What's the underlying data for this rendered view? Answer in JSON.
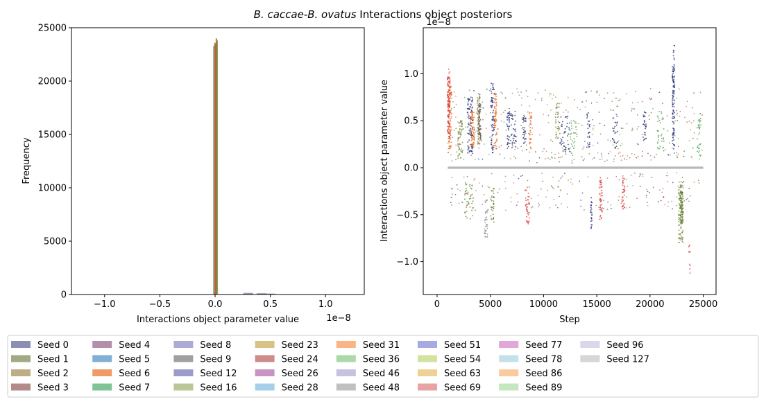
{
  "figure": {
    "title_parts": {
      "a": "B. caccae",
      "sep": "-",
      "b": "B. ovatus",
      "rest": " Interactions object posteriors"
    }
  },
  "chart_data": [
    {
      "type": "histogram",
      "xlabel": "Interactions object parameter value",
      "ylabel": "Frequency",
      "x_offset_label": "1e−8",
      "xlim": [
        -1.3,
        1.35
      ],
      "ylim": [
        0,
        25000
      ],
      "xticks": [
        -1.0,
        -0.5,
        0.0,
        0.5,
        1.0
      ],
      "xtick_labels": [
        "−1.0",
        "−0.5",
        "0.0",
        "0.5",
        "1.0"
      ],
      "yticks": [
        0,
        5000,
        10000,
        15000,
        20000,
        25000
      ],
      "ytick_labels": [
        "0",
        "5000",
        "10000",
        "15000",
        "20000",
        "25000"
      ],
      "bars": [
        {
          "seed": "Seed 7",
          "x": -0.01,
          "count": 23300
        },
        {
          "seed": "Seed 6",
          "x": -0.003,
          "count": 23600
        },
        {
          "seed": "Seed 24",
          "x": 0.005,
          "count": 23500
        },
        {
          "seed": "Seed 2",
          "x": 0.012,
          "count": 24000
        },
        {
          "seed": "Seed 16",
          "x": 0.018,
          "count": 23800
        },
        {
          "seed": "Seed 0",
          "x": 0.3,
          "count": 150
        },
        {
          "seed": "Seed 0",
          "x": 0.42,
          "count": 120
        },
        {
          "seed": "Seed 9",
          "x": 0.5,
          "count": 90
        }
      ]
    },
    {
      "type": "scatter",
      "xlabel": "Step",
      "ylabel": "Interactions object parameter value",
      "y_offset_label": "1e−8",
      "xlim": [
        -1300,
        26200
      ],
      "ylim": [
        -1.35,
        1.49
      ],
      "xticks": [
        0,
        5000,
        10000,
        15000,
        20000,
        25000
      ],
      "xtick_labels": [
        "0",
        "5000",
        "10000",
        "15000",
        "20000",
        "25000"
      ],
      "yticks": [
        -1.0,
        -0.5,
        0.0,
        0.5,
        1.0
      ],
      "ytick_labels": [
        "−1.0",
        "−0.5",
        "0.0",
        "0.5",
        "1.0"
      ],
      "baseline": {
        "y": 0.0,
        "x_range": [
          1000,
          25000
        ]
      },
      "clusters": [
        {
          "seed": "Seed 6",
          "x": 1200,
          "width": 350,
          "ymin": 0.2,
          "ymax": 0.9,
          "n": 90
        },
        {
          "seed": "Seed 69",
          "x": 1100,
          "width": 250,
          "ymin": 0.3,
          "ymax": 1.05,
          "n": 110
        },
        {
          "seed": "Seed 16",
          "x": 2200,
          "width": 500,
          "ymin": 0.1,
          "ymax": 0.5,
          "n": 60
        },
        {
          "seed": "Seed 0",
          "x": 3100,
          "width": 500,
          "ymin": 0.15,
          "ymax": 0.75,
          "n": 90
        },
        {
          "seed": "Seed 6",
          "x": 3300,
          "width": 400,
          "ymin": 0.2,
          "ymax": 0.6,
          "n": 70
        },
        {
          "seed": "Seed 2",
          "x": 3900,
          "width": 250,
          "ymin": 0.2,
          "ymax": 0.8,
          "n": 80
        },
        {
          "seed": "Seed 9",
          "x": 4000,
          "width": 200,
          "ymin": 0.3,
          "ymax": 0.7,
          "n": 50
        },
        {
          "seed": "Seed 6",
          "x": 5500,
          "width": 250,
          "ymin": 0.2,
          "ymax": 0.8,
          "n": 70
        },
        {
          "seed": "Seed 0",
          "x": 5200,
          "width": 350,
          "ymin": 0.15,
          "ymax": 0.9,
          "n": 70
        },
        {
          "seed": "Seed 0",
          "x": 7000,
          "width": 900,
          "ymin": 0.2,
          "ymax": 0.6,
          "n": 70
        },
        {
          "seed": "Seed 6",
          "x": 8800,
          "width": 300,
          "ymin": 0.2,
          "ymax": 0.6,
          "n": 35
        },
        {
          "seed": "Seed 0",
          "x": 8200,
          "width": 300,
          "ymin": 0.25,
          "ymax": 0.55,
          "n": 30
        },
        {
          "seed": "Seed 16",
          "x": 11300,
          "width": 350,
          "ymin": 0.3,
          "ymax": 0.7,
          "n": 35
        },
        {
          "seed": "Seed 0",
          "x": 12000,
          "width": 900,
          "ymin": 0.15,
          "ymax": 0.55,
          "n": 40
        },
        {
          "seed": "Seed 36",
          "x": 12800,
          "width": 700,
          "ymin": 0.15,
          "ymax": 0.5,
          "n": 30
        },
        {
          "seed": "Seed 0",
          "x": 14200,
          "width": 300,
          "ymin": 0.2,
          "ymax": 0.6,
          "n": 25
        },
        {
          "seed": "Seed 0",
          "x": 16700,
          "width": 500,
          "ymin": 0.2,
          "ymax": 0.55,
          "n": 25
        },
        {
          "seed": "Seed 0",
          "x": 19500,
          "width": 300,
          "ymin": 0.2,
          "ymax": 0.6,
          "n": 25
        },
        {
          "seed": "Seed 0",
          "x": 22200,
          "width": 220,
          "ymin": 0.2,
          "ymax": 1.1,
          "n": 80
        },
        {
          "seed": "Seed 0",
          "x": 22250,
          "width": 120,
          "ymin": 0.8,
          "ymax": 1.35,
          "n": 25
        },
        {
          "seed": "Seed 36",
          "x": 21000,
          "width": 600,
          "ymin": 0.2,
          "ymax": 0.6,
          "n": 30
        },
        {
          "seed": "Seed 36",
          "x": 24600,
          "width": 350,
          "ymin": 0.1,
          "ymax": 0.6,
          "n": 35
        },
        {
          "seed": "Seed 1",
          "x": 3000,
          "width": 800,
          "ymin": -0.55,
          "ymax": -0.15,
          "n": 40
        },
        {
          "seed": "Seed 48",
          "x": 4600,
          "width": 300,
          "ymin": -0.75,
          "ymax": -0.35,
          "n": 35
        },
        {
          "seed": "Seed 1",
          "x": 5200,
          "width": 300,
          "ymin": -0.6,
          "ymax": -0.2,
          "n": 30
        },
        {
          "seed": "Seed 69",
          "x": 8500,
          "width": 350,
          "ymin": -0.6,
          "ymax": -0.2,
          "n": 40
        },
        {
          "seed": "Seed 0",
          "x": 14500,
          "width": 150,
          "ymin": -0.65,
          "ymax": -0.3,
          "n": 25
        },
        {
          "seed": "Seed 69",
          "x": 15400,
          "width": 250,
          "ymin": -0.55,
          "ymax": -0.1,
          "n": 45
        },
        {
          "seed": "Seed 69",
          "x": 17500,
          "width": 300,
          "ymin": -0.45,
          "ymax": -0.1,
          "n": 35
        },
        {
          "seed": "Seed 16",
          "x": 22900,
          "width": 450,
          "ymin": -0.8,
          "ymax": -0.15,
          "n": 120
        },
        {
          "seed": "Seed 1",
          "x": 22950,
          "width": 250,
          "ymin": -0.6,
          "ymax": -0.25,
          "n": 60
        },
        {
          "seed": "Seed 69",
          "x": 23700,
          "width": 150,
          "ymin": -1.2,
          "ymax": -0.8,
          "n": 10
        }
      ]
    }
  ],
  "legend": {
    "items": [
      {
        "label": "Seed 0",
        "color": "#8b8fb3"
      },
      {
        "label": "Seed 1",
        "color": "#a0ab85"
      },
      {
        "label": "Seed 2",
        "color": "#bfad85"
      },
      {
        "label": "Seed 3",
        "color": "#b38a8a"
      },
      {
        "label": "Seed 4",
        "color": "#b38fab"
      },
      {
        "label": "Seed 5",
        "color": "#82afd6"
      },
      {
        "label": "Seed 6",
        "color": "#f09a69"
      },
      {
        "label": "Seed 7",
        "color": "#7fc496"
      },
      {
        "label": "Seed 8",
        "color": "#ababd6"
      },
      {
        "label": "Seed 9",
        "color": "#a0a0a0"
      },
      {
        "label": "Seed 12",
        "color": "#9c9ccc"
      },
      {
        "label": "Seed 16",
        "color": "#b9c696"
      },
      {
        "label": "Seed 23",
        "color": "#d8c284"
      },
      {
        "label": "Seed 24",
        "color": "#cc8c8c"
      },
      {
        "label": "Seed 26",
        "color": "#c994c4"
      },
      {
        "label": "Seed 28",
        "color": "#a6d0e9"
      },
      {
        "label": "Seed 31",
        "color": "#fbb584"
      },
      {
        "label": "Seed 36",
        "color": "#acd9a7"
      },
      {
        "label": "Seed 46",
        "color": "#c6c2e2"
      },
      {
        "label": "Seed 48",
        "color": "#c0c0c0"
      },
      {
        "label": "Seed 51",
        "color": "#a6a9e2"
      },
      {
        "label": "Seed 54",
        "color": "#d2e29f"
      },
      {
        "label": "Seed 63",
        "color": "#eed295"
      },
      {
        "label": "Seed 69",
        "color": "#e7a3a6"
      },
      {
        "label": "Seed 77",
        "color": "#e0a7d7"
      },
      {
        "label": "Seed 78",
        "color": "#c4e0ea"
      },
      {
        "label": "Seed 86",
        "color": "#fbcb9f"
      },
      {
        "label": "Seed 89",
        "color": "#c4e7bf"
      },
      {
        "label": "Seed 96",
        "color": "#d9d7ec"
      },
      {
        "label": "Seed 127",
        "color": "#d6d6d6"
      }
    ]
  },
  "marker_colors": {
    "Seed 0": "#1f2a70",
    "Seed 1": "#5e7a2a",
    "Seed 2": "#8a7a45",
    "Seed 6": "#ee6d20",
    "Seed 7": "#3a9a5c",
    "Seed 9": "#555555",
    "Seed 16": "#7a8a40",
    "Seed 24": "#b05050",
    "Seed 36": "#52a052",
    "Seed 48": "#888888",
    "Seed 69": "#d43a3a"
  }
}
